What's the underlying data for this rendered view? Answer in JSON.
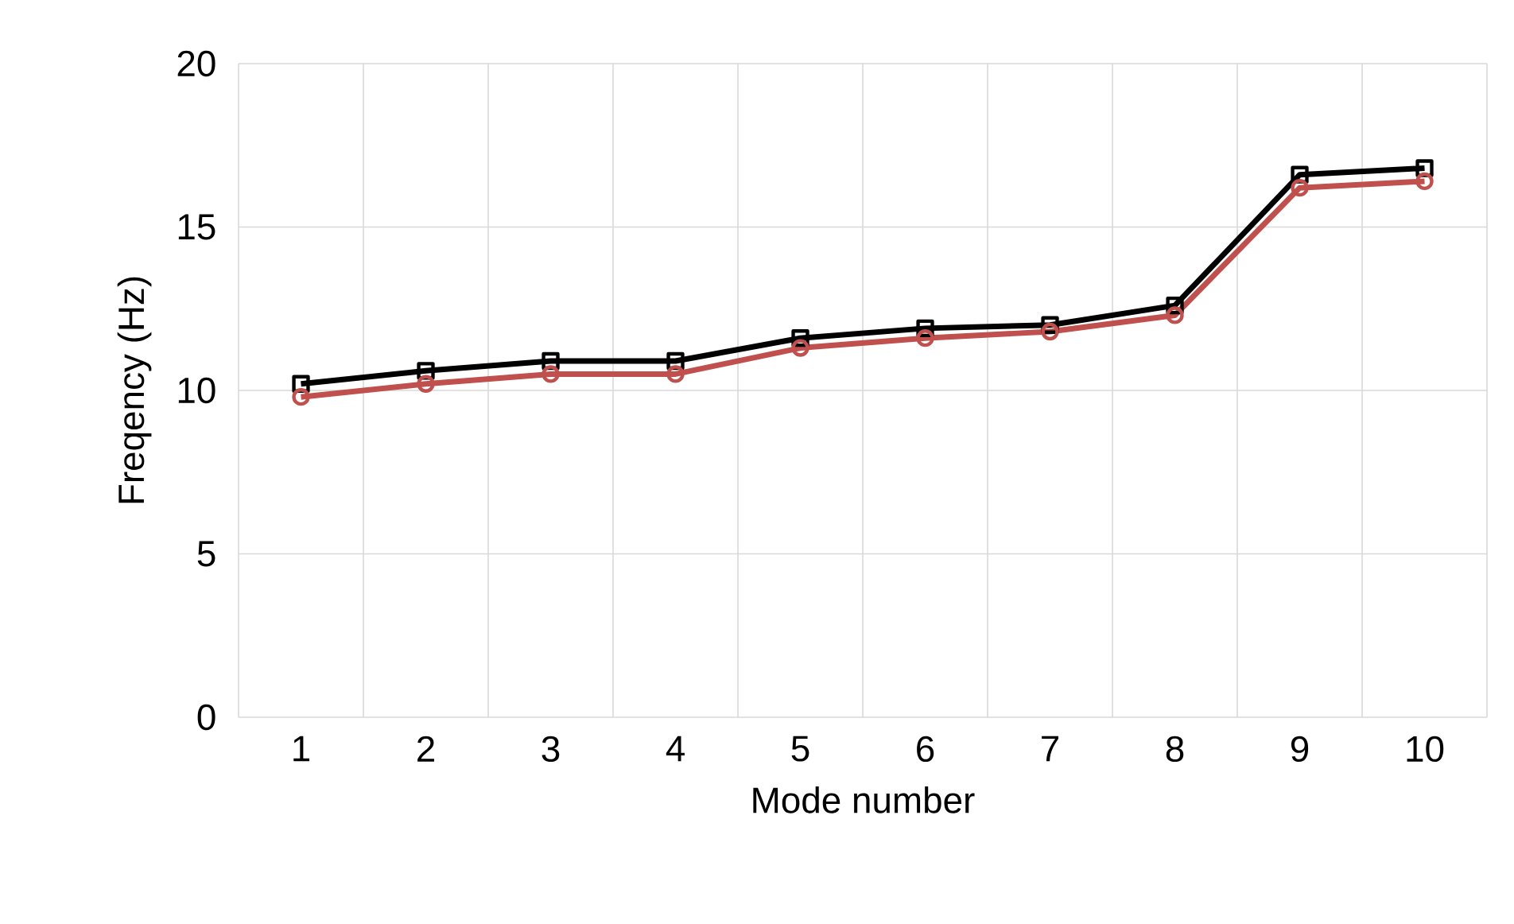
{
  "chart_data": {
    "type": "line",
    "xlabel": "Mode number",
    "ylabel": "Freqency (Hz)",
    "categories": [
      "1",
      "2",
      "3",
      "4",
      "5",
      "6",
      "7",
      "8",
      "9",
      "10"
    ],
    "series": [
      {
        "color": "#000000",
        "marker": "square",
        "values": [
          10.2,
          10.6,
          10.9,
          10.9,
          11.6,
          11.9,
          12.0,
          12.6,
          16.6,
          16.8
        ]
      },
      {
        "color": "#c0504d",
        "marker": "circle",
        "values": [
          9.8,
          10.2,
          10.5,
          10.5,
          11.3,
          11.6,
          11.8,
          12.3,
          16.2,
          16.4
        ]
      }
    ],
    "ylim": [
      0,
      20
    ],
    "yticks": [
      0,
      5,
      10,
      15,
      20
    ],
    "grid": true,
    "line_style": "solid"
  }
}
